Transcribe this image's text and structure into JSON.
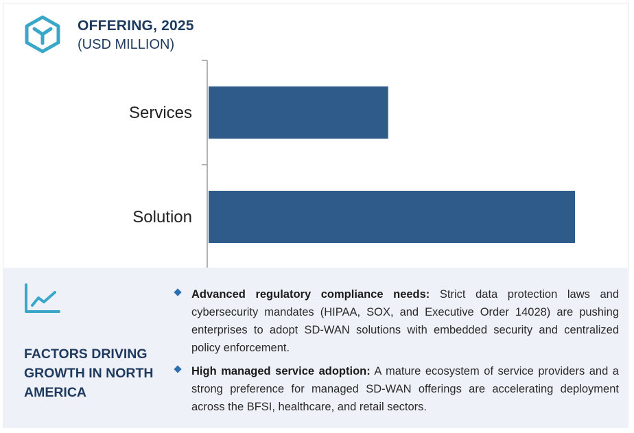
{
  "header": {
    "title": "OFFERING, 2025",
    "subtitle": "(USD MILLION)",
    "icon": "cube-icon"
  },
  "colors": {
    "bar": "#2e5b8a",
    "accent": "#3aa7c9",
    "title": "#1f3a5f",
    "panel_bg": "#eef1f8"
  },
  "chart_data": {
    "type": "bar",
    "orientation": "horizontal",
    "categories": [
      "Services",
      "Solution"
    ],
    "values": [
      49,
      100
    ],
    "xlim": [
      0,
      100
    ],
    "title": "OFFERING, 2025",
    "subtitle": "(USD MILLION)",
    "xlabel": "",
    "ylabel": "",
    "grid": false,
    "legend": "none"
  },
  "factors": {
    "icon": "line-chart-icon",
    "title": "FACTORS DRIVING GROWTH IN NORTH AMERICA",
    "items": [
      {
        "heading": "Advanced regulatory compliance needs:",
        "text": " Strict data protection laws and cybersecurity mandates (HIPAA, SOX, and Executive Order 14028) are pushing enterprises to adopt SD-WAN solutions with embedded security and centralized policy enforcement."
      },
      {
        "heading": "High managed service adoption:",
        "text": " A mature ecosystem of service providers and a strong preference for managed SD-WAN offerings are accelerating deployment across the BFSI, healthcare, and retail sectors."
      }
    ]
  }
}
